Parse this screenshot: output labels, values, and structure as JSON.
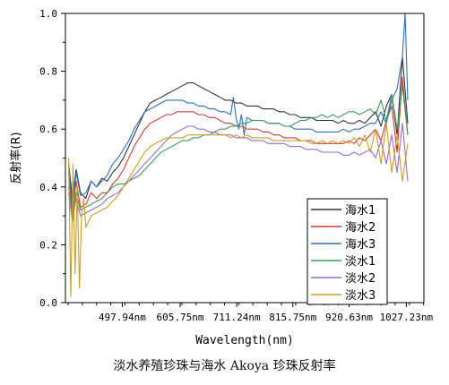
{
  "chart_data": {
    "type": "line",
    "xlabel": "Wavelength(nm)",
    "ylabel": "反射率(R)",
    "xlim": [
      392,
      1060
    ],
    "ylim": [
      0.0,
      1.0
    ],
    "xticks": [
      {
        "value": 497.94,
        "label": "497.94nm"
      },
      {
        "value": 605.75,
        "label": "605.75nm"
      },
      {
        "value": 711.24,
        "label": "711.24nm"
      },
      {
        "value": 815.75,
        "label": "815.75nm"
      },
      {
        "value": 920.63,
        "label": "920.63nm"
      },
      {
        "value": 1027.23,
        "label": "1027.23nm"
      }
    ],
    "yticks": [
      {
        "value": 0.0,
        "label": "0.0"
      },
      {
        "value": 0.2,
        "label": "0.2"
      },
      {
        "value": 0.4,
        "label": "0.4"
      },
      {
        "value": 0.6,
        "label": "0.6"
      },
      {
        "value": 0.8,
        "label": "0.8"
      },
      {
        "value": 1.0,
        "label": "1.0"
      }
    ],
    "grid": false,
    "legend_position": "bottom-right",
    "series": [
      {
        "name": "海水1",
        "color": "#333333",
        "x": [
          398,
          405,
          412,
          420,
          430,
          440,
          450,
          460,
          470,
          480,
          490,
          500,
          510,
          520,
          530,
          540,
          550,
          560,
          570,
          580,
          590,
          600,
          610,
          620,
          630,
          640,
          650,
          660,
          670,
          680,
          690,
          700,
          710,
          720,
          730,
          740,
          750,
          760,
          770,
          780,
          790,
          800,
          810,
          820,
          830,
          840,
          850,
          860,
          870,
          880,
          890,
          900,
          910,
          920,
          930,
          940,
          950,
          960,
          970,
          980,
          990,
          1000,
          1010,
          1020,
          1030
        ],
        "y": [
          0.48,
          0.36,
          0.46,
          0.38,
          0.36,
          0.42,
          0.4,
          0.43,
          0.42,
          0.45,
          0.47,
          0.5,
          0.54,
          0.58,
          0.62,
          0.66,
          0.69,
          0.7,
          0.71,
          0.72,
          0.73,
          0.74,
          0.75,
          0.76,
          0.76,
          0.75,
          0.74,
          0.73,
          0.72,
          0.71,
          0.7,
          0.7,
          0.69,
          0.69,
          0.68,
          0.68,
          0.68,
          0.67,
          0.67,
          0.67,
          0.66,
          0.66,
          0.65,
          0.65,
          0.64,
          0.64,
          0.64,
          0.63,
          0.63,
          0.63,
          0.63,
          0.62,
          0.63,
          0.62,
          0.62,
          0.63,
          0.62,
          0.64,
          0.66,
          0.61,
          0.68,
          0.72,
          0.58,
          0.85,
          0.62
        ]
      },
      {
        "name": "海水2",
        "color": "#d03a3a",
        "x": [
          398,
          405,
          412,
          420,
          430,
          440,
          450,
          460,
          470,
          480,
          490,
          500,
          510,
          520,
          530,
          540,
          550,
          560,
          570,
          580,
          590,
          600,
          610,
          620,
          630,
          640,
          650,
          660,
          670,
          680,
          690,
          700,
          710,
          720,
          730,
          740,
          750,
          760,
          770,
          780,
          790,
          800,
          810,
          820,
          830,
          840,
          850,
          860,
          870,
          880,
          890,
          900,
          910,
          920,
          930,
          940,
          950,
          960,
          970,
          980,
          990,
          1000,
          1010,
          1020,
          1030
        ],
        "y": [
          0.45,
          0.3,
          0.42,
          0.33,
          0.34,
          0.38,
          0.36,
          0.38,
          0.38,
          0.41,
          0.43,
          0.46,
          0.5,
          0.54,
          0.57,
          0.6,
          0.62,
          0.63,
          0.64,
          0.65,
          0.65,
          0.66,
          0.66,
          0.66,
          0.66,
          0.65,
          0.65,
          0.64,
          0.64,
          0.63,
          0.62,
          0.62,
          0.61,
          0.61,
          0.6,
          0.6,
          0.6,
          0.59,
          0.59,
          0.58,
          0.58,
          0.57,
          0.57,
          0.57,
          0.56,
          0.56,
          0.56,
          0.55,
          0.55,
          0.55,
          0.55,
          0.55,
          0.55,
          0.56,
          0.55,
          0.57,
          0.56,
          0.58,
          0.6,
          0.56,
          0.63,
          0.68,
          0.52,
          0.78,
          0.58
        ]
      },
      {
        "name": "海水3",
        "color": "#2f6fc0",
        "x": [
          398,
          405,
          412,
          420,
          430,
          440,
          450,
          460,
          470,
          480,
          490,
          500,
          510,
          520,
          530,
          540,
          550,
          560,
          570,
          580,
          590,
          600,
          610,
          620,
          630,
          640,
          650,
          660,
          670,
          680,
          690,
          700,
          705,
          710,
          715,
          720,
          725,
          730,
          740,
          750,
          760,
          770,
          780,
          790,
          800,
          810,
          820,
          830,
          840,
          850,
          860,
          870,
          880,
          890,
          900,
          910,
          920,
          930,
          940,
          950,
          960,
          970,
          980,
          990,
          1000,
          1010,
          1020,
          1025,
          1030
        ],
        "y": [
          0.47,
          0.33,
          0.45,
          0.37,
          0.38,
          0.42,
          0.4,
          0.42,
          0.44,
          0.48,
          0.5,
          0.53,
          0.56,
          0.6,
          0.63,
          0.66,
          0.67,
          0.68,
          0.69,
          0.7,
          0.7,
          0.7,
          0.7,
          0.69,
          0.69,
          0.68,
          0.68,
          0.67,
          0.67,
          0.66,
          0.66,
          0.65,
          0.71,
          0.64,
          0.6,
          0.65,
          0.58,
          0.64,
          0.63,
          0.63,
          0.63,
          0.62,
          0.62,
          0.62,
          0.61,
          0.61,
          0.6,
          0.6,
          0.6,
          0.6,
          0.59,
          0.59,
          0.59,
          0.59,
          0.59,
          0.6,
          0.59,
          0.6,
          0.6,
          0.61,
          0.62,
          0.62,
          0.66,
          0.62,
          0.7,
          0.74,
          0.85,
          1.0,
          0.7
        ]
      },
      {
        "name": "淡水1",
        "color": "#3a9a5a",
        "x": [
          398,
          405,
          412,
          420,
          430,
          440,
          450,
          460,
          470,
          480,
          490,
          500,
          510,
          520,
          530,
          540,
          550,
          560,
          570,
          580,
          590,
          600,
          610,
          620,
          630,
          640,
          650,
          660,
          670,
          680,
          690,
          700,
          710,
          720,
          730,
          740,
          750,
          760,
          770,
          780,
          790,
          800,
          810,
          820,
          830,
          840,
          850,
          860,
          870,
          880,
          890,
          900,
          910,
          920,
          930,
          940,
          950,
          960,
          970,
          980,
          990,
          1000,
          1010,
          1020,
          1030
        ],
        "y": [
          0.4,
          0.3,
          0.38,
          0.32,
          0.33,
          0.34,
          0.35,
          0.36,
          0.38,
          0.4,
          0.41,
          0.41,
          0.42,
          0.43,
          0.44,
          0.46,
          0.48,
          0.5,
          0.52,
          0.53,
          0.54,
          0.55,
          0.56,
          0.56,
          0.57,
          0.57,
          0.58,
          0.58,
          0.59,
          0.6,
          0.6,
          0.61,
          0.61,
          0.62,
          0.62,
          0.63,
          0.63,
          0.63,
          0.62,
          0.62,
          0.62,
          0.61,
          0.61,
          0.62,
          0.63,
          0.63,
          0.64,
          0.64,
          0.65,
          0.64,
          0.65,
          0.64,
          0.65,
          0.66,
          0.66,
          0.65,
          0.66,
          0.67,
          0.65,
          0.7,
          0.63,
          0.72,
          0.6,
          0.75,
          0.58
        ]
      },
      {
        "name": "淡水2",
        "color": "#9a6ad0",
        "x": [
          398,
          405,
          412,
          420,
          430,
          440,
          450,
          460,
          470,
          480,
          490,
          500,
          510,
          520,
          530,
          540,
          550,
          560,
          570,
          580,
          590,
          600,
          610,
          620,
          630,
          640,
          650,
          660,
          670,
          680,
          690,
          700,
          710,
          720,
          730,
          740,
          750,
          760,
          770,
          780,
          790,
          800,
          810,
          820,
          830,
          840,
          850,
          860,
          870,
          880,
          890,
          900,
          910,
          920,
          930,
          940,
          950,
          960,
          970,
          980,
          990,
          1000,
          1010,
          1020,
          1030
        ],
        "y": [
          0.38,
          0.28,
          0.36,
          0.3,
          0.31,
          0.32,
          0.33,
          0.34,
          0.36,
          0.37,
          0.38,
          0.4,
          0.42,
          0.44,
          0.46,
          0.48,
          0.5,
          0.52,
          0.54,
          0.56,
          0.58,
          0.59,
          0.6,
          0.61,
          0.61,
          0.6,
          0.6,
          0.59,
          0.59,
          0.58,
          0.58,
          0.58,
          0.57,
          0.57,
          0.57,
          0.56,
          0.56,
          0.56,
          0.55,
          0.55,
          0.55,
          0.55,
          0.54,
          0.54,
          0.54,
          0.53,
          0.53,
          0.53,
          0.52,
          0.52,
          0.52,
          0.52,
          0.51,
          0.51,
          0.52,
          0.51,
          0.52,
          0.53,
          0.5,
          0.56,
          0.48,
          0.58,
          0.45,
          0.62,
          0.42
        ]
      },
      {
        "name": "淡水3",
        "color": "#c9a020",
        "x": [
          398,
          402,
          406,
          410,
          414,
          418,
          422,
          426,
          430,
          440,
          450,
          460,
          470,
          480,
          490,
          500,
          510,
          520,
          530,
          540,
          550,
          560,
          570,
          580,
          590,
          600,
          610,
          620,
          630,
          640,
          650,
          660,
          670,
          680,
          690,
          700,
          710,
          720,
          730,
          740,
          750,
          760,
          770,
          780,
          790,
          800,
          810,
          820,
          830,
          840,
          850,
          860,
          870,
          880,
          890,
          900,
          910,
          920,
          930,
          940,
          950,
          960,
          970,
          980,
          990,
          1000,
          1010,
          1020,
          1030
        ],
        "y": [
          0.5,
          0.02,
          0.48,
          0.1,
          0.4,
          0.05,
          0.3,
          0.36,
          0.26,
          0.3,
          0.31,
          0.32,
          0.33,
          0.35,
          0.37,
          0.4,
          0.43,
          0.46,
          0.49,
          0.52,
          0.54,
          0.55,
          0.56,
          0.57,
          0.57,
          0.57,
          0.57,
          0.58,
          0.58,
          0.58,
          0.58,
          0.58,
          0.58,
          0.58,
          0.58,
          0.57,
          0.58,
          0.57,
          0.58,
          0.57,
          0.57,
          0.57,
          0.57,
          0.56,
          0.56,
          0.56,
          0.56,
          0.56,
          0.56,
          0.56,
          0.55,
          0.55,
          0.56,
          0.55,
          0.56,
          0.55,
          0.56,
          0.55,
          0.57,
          0.54,
          0.58,
          0.52,
          0.6,
          0.48,
          0.62,
          0.45,
          0.58,
          0.42,
          0.55
        ]
      }
    ]
  },
  "caption": "淡水养殖珍珠与海水 Akoya 珍珠反射率"
}
